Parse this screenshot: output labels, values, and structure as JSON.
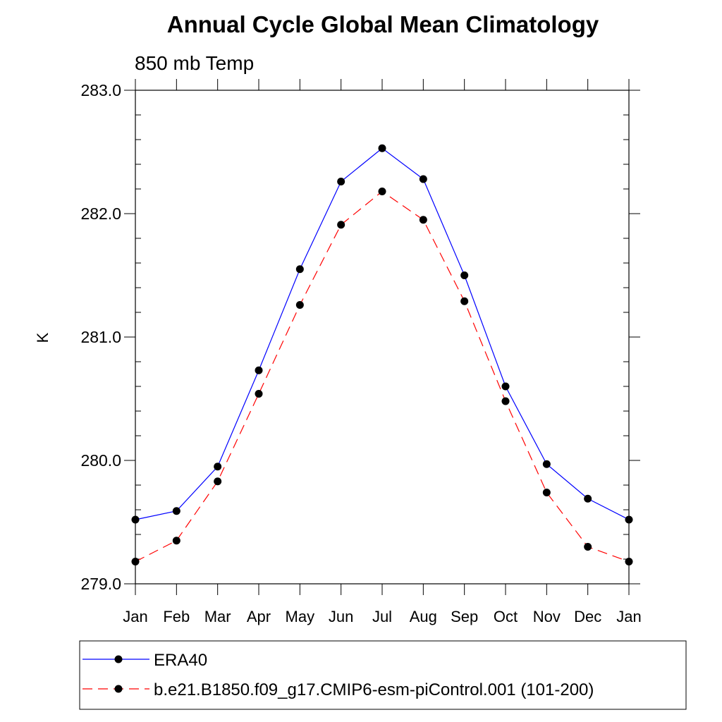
{
  "chart_data": {
    "type": "line",
    "title": "Annual Cycle Global Mean Climatology",
    "subtitle": "850 mb Temp",
    "xlabel": "",
    "ylabel": "K",
    "categories": [
      "Jan",
      "Feb",
      "Mar",
      "Apr",
      "May",
      "Jun",
      "Jul",
      "Aug",
      "Sep",
      "Oct",
      "Nov",
      "Dec",
      "Jan"
    ],
    "ylim": [
      279.0,
      283.0
    ],
    "yticks": [
      "279.0",
      "280.0",
      "281.0",
      "282.0",
      "283.0"
    ],
    "grid": false,
    "legend_position": "bottom",
    "series": [
      {
        "name": "ERA40",
        "color": "#0000ff",
        "line_style": "solid",
        "marker": "circle",
        "values": [
          279.52,
          279.59,
          279.95,
          280.73,
          281.55,
          282.26,
          282.53,
          282.28,
          281.5,
          280.6,
          279.97,
          279.69,
          279.52
        ]
      },
      {
        "name": "b.e21.B1850.f09_g17.CMIP6-esm-piControl.001 (101-200)",
        "color": "#ff0000",
        "line_style": "dashed",
        "marker": "circle",
        "values": [
          279.18,
          279.35,
          279.83,
          280.54,
          281.26,
          281.91,
          282.18,
          281.95,
          281.29,
          280.48,
          279.74,
          279.3,
          279.18
        ]
      }
    ]
  }
}
